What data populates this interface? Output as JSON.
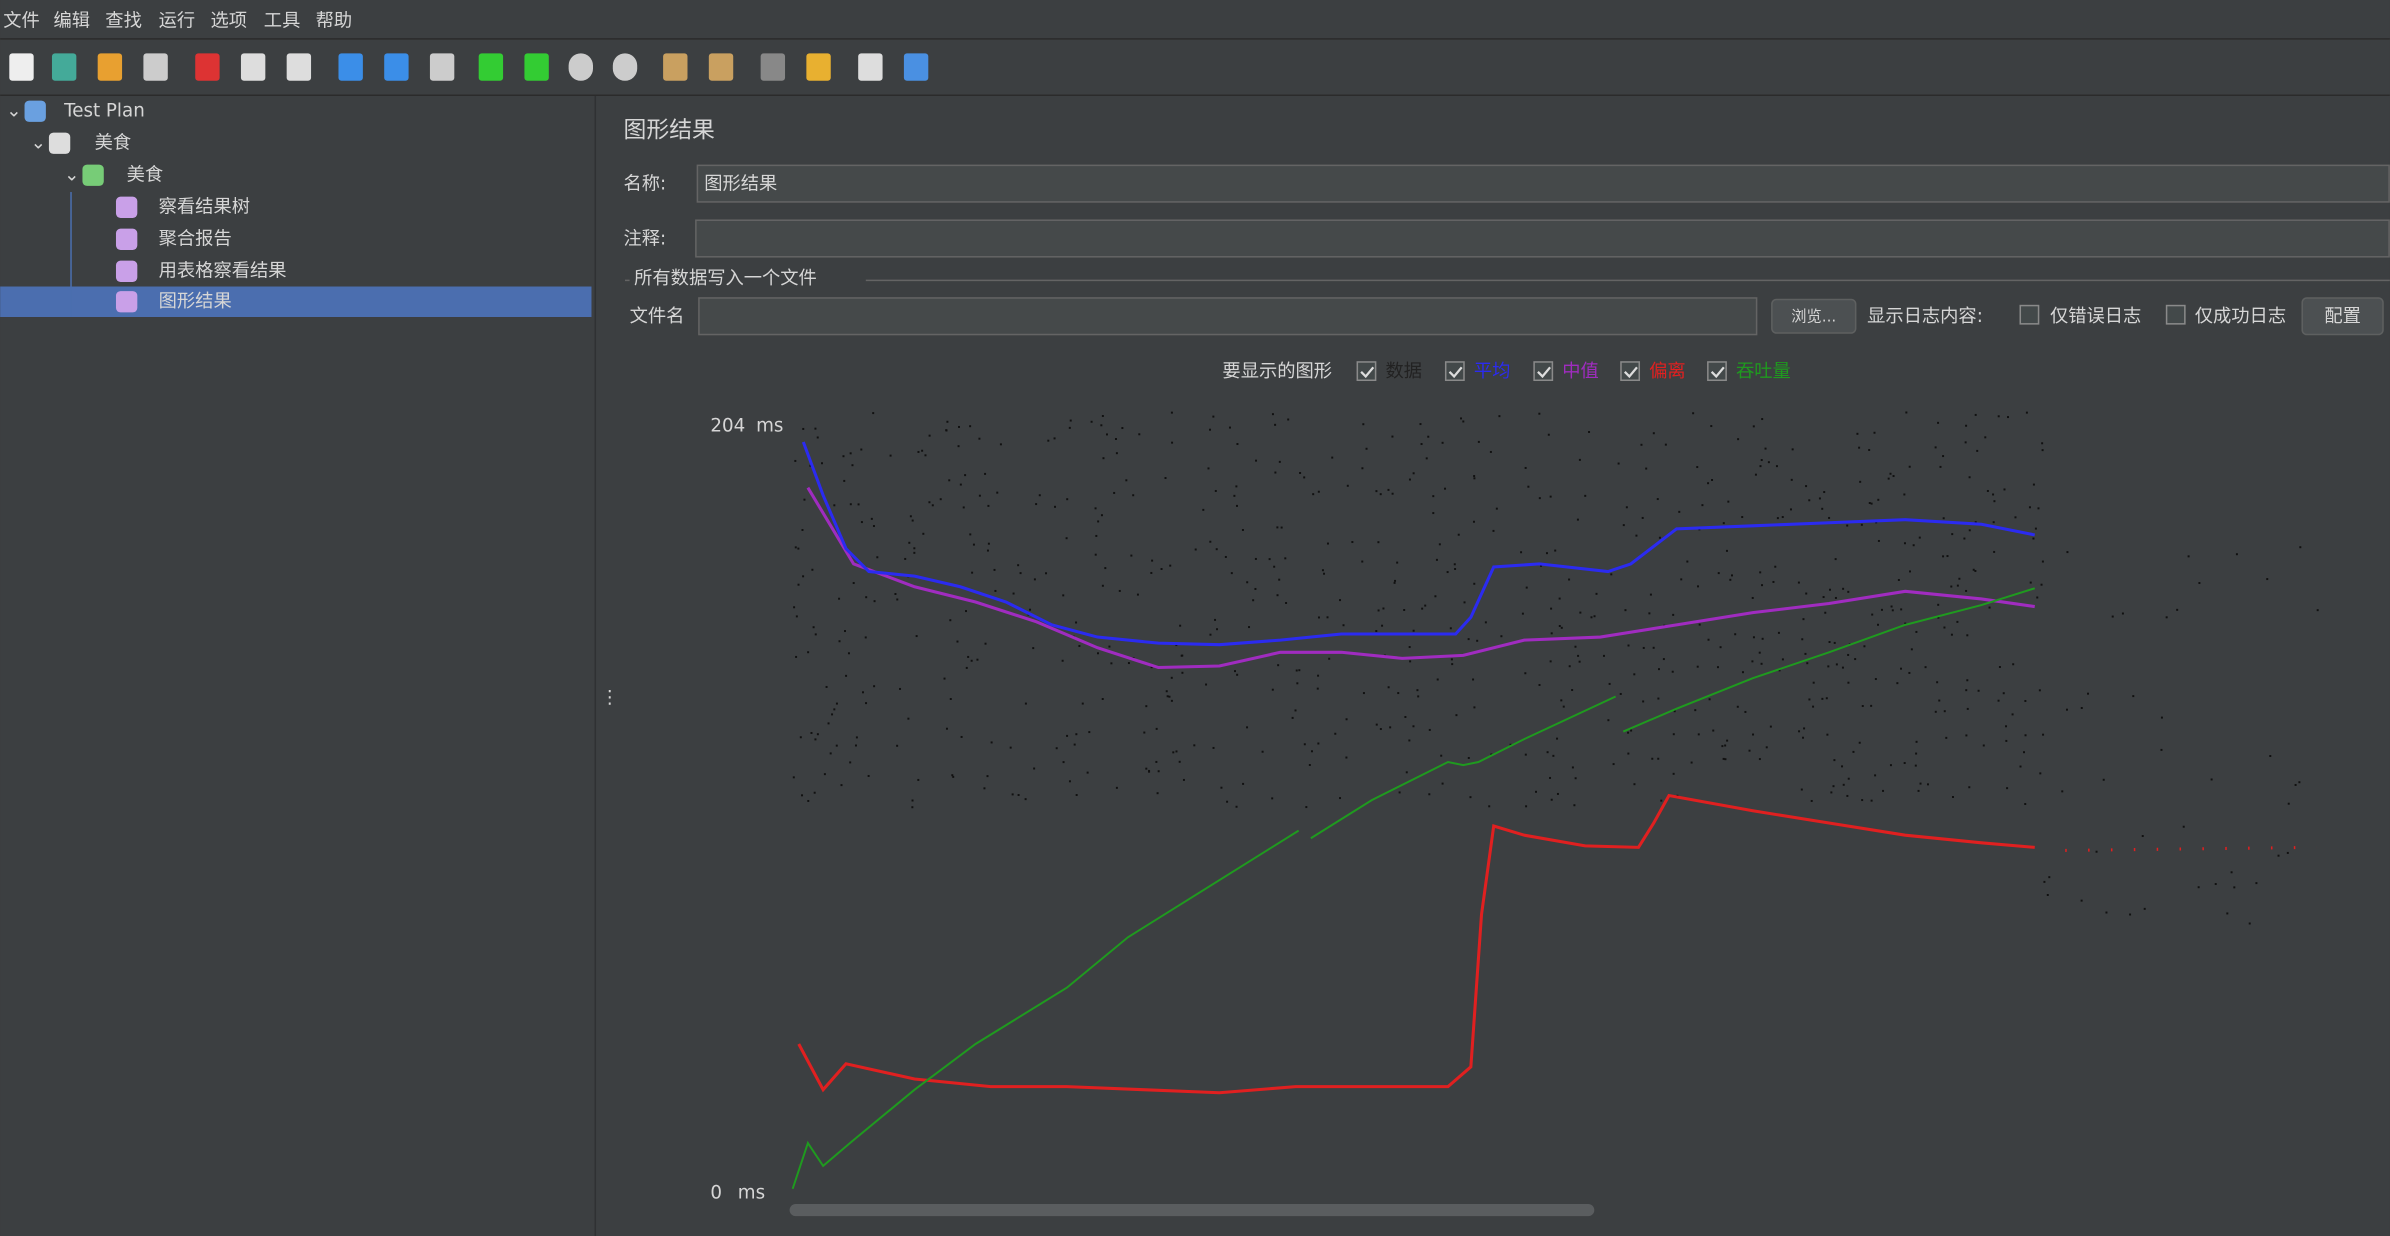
{
  "menu": [
    "文件",
    "编辑",
    "查找",
    "运行",
    "选项",
    "工具",
    "帮助"
  ],
  "tree": [
    "Test Plan",
    "美食",
    "美食",
    "察看结果树",
    "聚合报告",
    "用表格察看结果",
    "图形结果"
  ],
  "panel": {
    "title": "图形结果",
    "name_label": "名称:",
    "name_value": "图形结果",
    "comment_label": "注释:",
    "file_group": "所有数据写入一个文件",
    "file_label": "文件名",
    "browse": "浏览...",
    "log_label": "显示日志内容:",
    "errors_only": "仅错误日志",
    "success_only": "仅成功日志",
    "configure": "配置"
  },
  "graph": {
    "show_label": "要显示的图形",
    "options": [
      {
        "label": "数据",
        "color": "#222222"
      },
      {
        "label": "平均",
        "color": "#2b2bf0"
      },
      {
        "label": "中值",
        "color": "#a02cc0"
      },
      {
        "label": "偏离",
        "color": "#e02020"
      },
      {
        "label": "吞吐量",
        "color": "#1f9a1f"
      }
    ],
    "y_max": 204,
    "y_min": 0,
    "unit": "ms"
  }
}
